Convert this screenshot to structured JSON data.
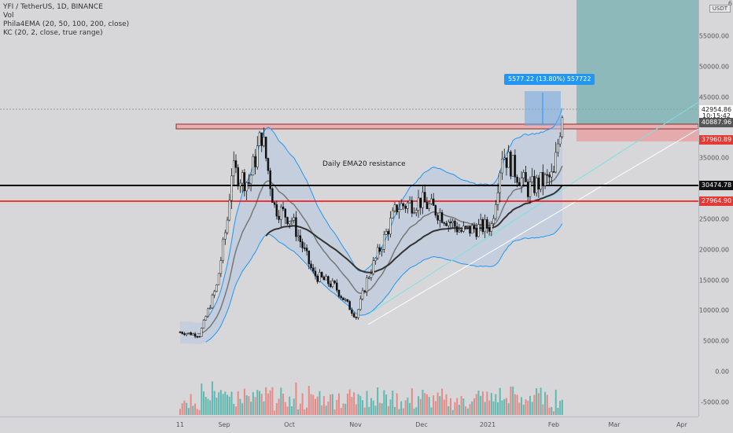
{
  "legend": {
    "symbol": "YFI / TetherUS, 1D, BINANCE",
    "vol": "Vol",
    "ema": "Phila4EMA (20, 50, 100, 200, close)",
    "kc": "KC (20, 2, close, true range)"
  },
  "axis": {
    "currency": "USDT",
    "top_label": "6",
    "ticks": [
      "55000.00",
      "50000.00",
      "45000.00",
      "35000.00",
      "25000.00",
      "20000.00",
      "15000.00",
      "10000.00",
      "5000.00",
      "0.00",
      "-5000.00"
    ],
    "price_tags": [
      {
        "text": "42954.86",
        "value": 42954.86,
        "bg": "#ffffff",
        "fg": "#222222"
      },
      {
        "text": "10:15:42",
        "value": 41800,
        "bg": "#ffffff",
        "fg": "#222222"
      },
      {
        "text": "40887.96",
        "value": 40887.96,
        "bg": "#555555",
        "fg": "#ffffff"
      },
      {
        "text": "37960.89",
        "value": 37960.89,
        "bg": "#e53935",
        "fg": "#ffffff"
      },
      {
        "text": "30474.78",
        "value": 30474.78,
        "bg": "#111111",
        "fg": "#ffffff"
      },
      {
        "text": "27964.90",
        "value": 27964.9,
        "bg": "#e53935",
        "fg": "#ffffff"
      }
    ]
  },
  "time_axis": [
    "11",
    "Sep",
    "Oct",
    "Nov",
    "Dec",
    "2021",
    "Feb",
    "Mar",
    "Apr"
  ],
  "annotations": {
    "resistance": "Daily EMA20 resistance",
    "measure": "5577.22 (13.80%) 557722"
  },
  "colors": {
    "up": "#26a69a",
    "down": "#ef5350",
    "candle": "#111111",
    "kc_band": "#2196f3",
    "resistance_line": "#000000",
    "support_line": "#ff0000",
    "target_zone": "#80b4b4"
  },
  "chart_data": {
    "type": "candlestick",
    "symbol": "YFI / TetherUS",
    "interval": "1D",
    "ylim": [
      -8000,
      60000
    ],
    "levels": [
      {
        "value": 30474.78,
        "color": "#000000"
      },
      {
        "value": 27964.9,
        "color": "#ff0000"
      }
    ],
    "close_path": [
      {
        "date": "2020-08-11",
        "price": 6500
      },
      {
        "date": "2020-08-20",
        "price": 6000
      },
      {
        "date": "2020-08-28",
        "price": 14000
      },
      {
        "date": "2020-09-02",
        "price": 25000
      },
      {
        "date": "2020-09-04",
        "price": 33000
      },
      {
        "date": "2020-09-12",
        "price": 31000
      },
      {
        "date": "2020-09-18",
        "price": 39000
      },
      {
        "date": "2020-09-24",
        "price": 27000
      },
      {
        "date": "2020-10-02",
        "price": 25000
      },
      {
        "date": "2020-10-12",
        "price": 16000
      },
      {
        "date": "2020-10-22",
        "price": 14000
      },
      {
        "date": "2020-11-01",
        "price": 9000
      },
      {
        "date": "2020-11-06",
        "price": 15000
      },
      {
        "date": "2020-11-20",
        "price": 27000
      },
      {
        "date": "2020-12-01",
        "price": 28000
      },
      {
        "date": "2020-12-10",
        "price": 26000
      },
      {
        "date": "2020-12-20",
        "price": 23000
      },
      {
        "date": "2021-01-03",
        "price": 24000
      },
      {
        "date": "2021-01-08",
        "price": 36000
      },
      {
        "date": "2021-01-20",
        "price": 30000
      },
      {
        "date": "2021-02-01",
        "price": 32000
      },
      {
        "date": "2021-02-05",
        "price": 42954.86
      }
    ]
  }
}
